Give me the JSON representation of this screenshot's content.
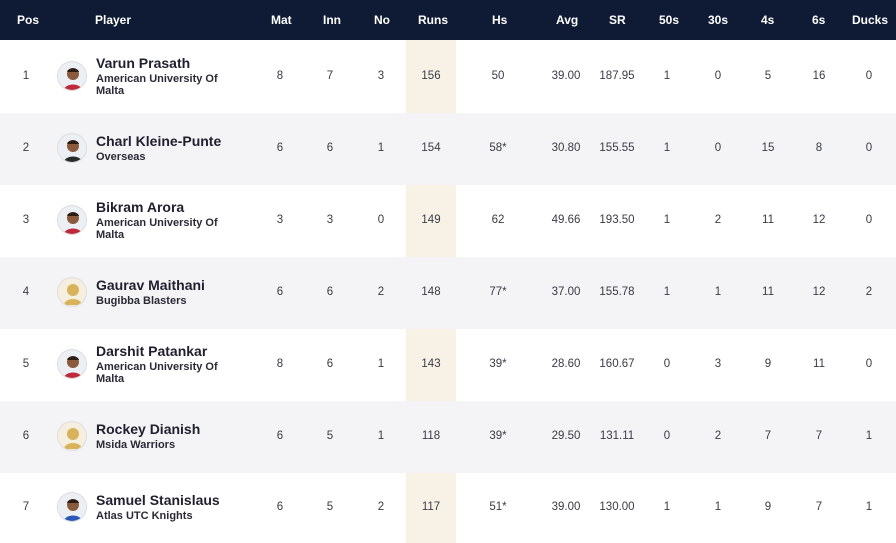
{
  "headers": [
    "Pos",
    "Player",
    "Mat",
    "Inn",
    "No",
    "Runs",
    "Hs",
    "Avg",
    "SR",
    "50s",
    "30s",
    "4s",
    "6s",
    "Ducks"
  ],
  "rows": [
    {
      "pos": "1",
      "name": "Varun Prasath",
      "team": "American University Of Malta",
      "avatar": "player-photo-icon",
      "mat": "8",
      "inn": "7",
      "no": "3",
      "runs": "156",
      "hs": "50",
      "avg": "39.00",
      "sr": "187.95",
      "fifties": "1",
      "thirties": "0",
      "fours": "5",
      "sixes": "16",
      "ducks": "0"
    },
    {
      "pos": "2",
      "name": "Charl Kleine-Punte",
      "team": "Overseas",
      "avatar": "player-photo-icon",
      "mat": "6",
      "inn": "6",
      "no": "1",
      "runs": "154",
      "hs": "58*",
      "avg": "30.80",
      "sr": "155.55",
      "fifties": "1",
      "thirties": "0",
      "fours": "15",
      "sixes": "8",
      "ducks": "0"
    },
    {
      "pos": "3",
      "name": "Bikram Arora",
      "team": "American University Of Malta",
      "avatar": "player-photo-icon",
      "mat": "3",
      "inn": "3",
      "no": "0",
      "runs": "149",
      "hs": "62",
      "avg": "49.66",
      "sr": "193.50",
      "fifties": "1",
      "thirties": "2",
      "fours": "11",
      "sixes": "12",
      "ducks": "0"
    },
    {
      "pos": "4",
      "name": "Gaurav Maithani",
      "team": "Bugibba Blasters",
      "avatar": "placeholder-silhouette-icon",
      "mat": "6",
      "inn": "6",
      "no": "2",
      "runs": "148",
      "hs": "77*",
      "avg": "37.00",
      "sr": "155.78",
      "fifties": "1",
      "thirties": "1",
      "fours": "11",
      "sixes": "12",
      "ducks": "2"
    },
    {
      "pos": "5",
      "name": "Darshit Patankar",
      "team": "American University Of Malta",
      "avatar": "player-photo-icon",
      "mat": "8",
      "inn": "6",
      "no": "1",
      "runs": "143",
      "hs": "39*",
      "avg": "28.60",
      "sr": "160.67",
      "fifties": "0",
      "thirties": "3",
      "fours": "9",
      "sixes": "11",
      "ducks": "0"
    },
    {
      "pos": "6",
      "name": "Rockey Dianish",
      "team": "Msida Warriors",
      "avatar": "placeholder-silhouette-icon",
      "mat": "6",
      "inn": "5",
      "no": "1",
      "runs": "118",
      "hs": "39*",
      "avg": "29.50",
      "sr": "131.11",
      "fifties": "0",
      "thirties": "2",
      "fours": "7",
      "sixes": "7",
      "ducks": "1"
    },
    {
      "pos": "7",
      "name": "Samuel Stanislaus",
      "team": "Atlas UTC Knights",
      "avatar": "player-photo-icon",
      "mat": "6",
      "inn": "5",
      "no": "2",
      "runs": "117",
      "hs": "51*",
      "avg": "39.00",
      "sr": "130.00",
      "fifties": "1",
      "thirties": "1",
      "fours": "9",
      "sixes": "7",
      "ducks": "1"
    }
  ],
  "colors": {
    "header_bg": "#0f1b34",
    "header_text": "#ffffff",
    "alt_row_bg": "#f4f4f6",
    "runs_column_bg": "#f8f2e6"
  }
}
